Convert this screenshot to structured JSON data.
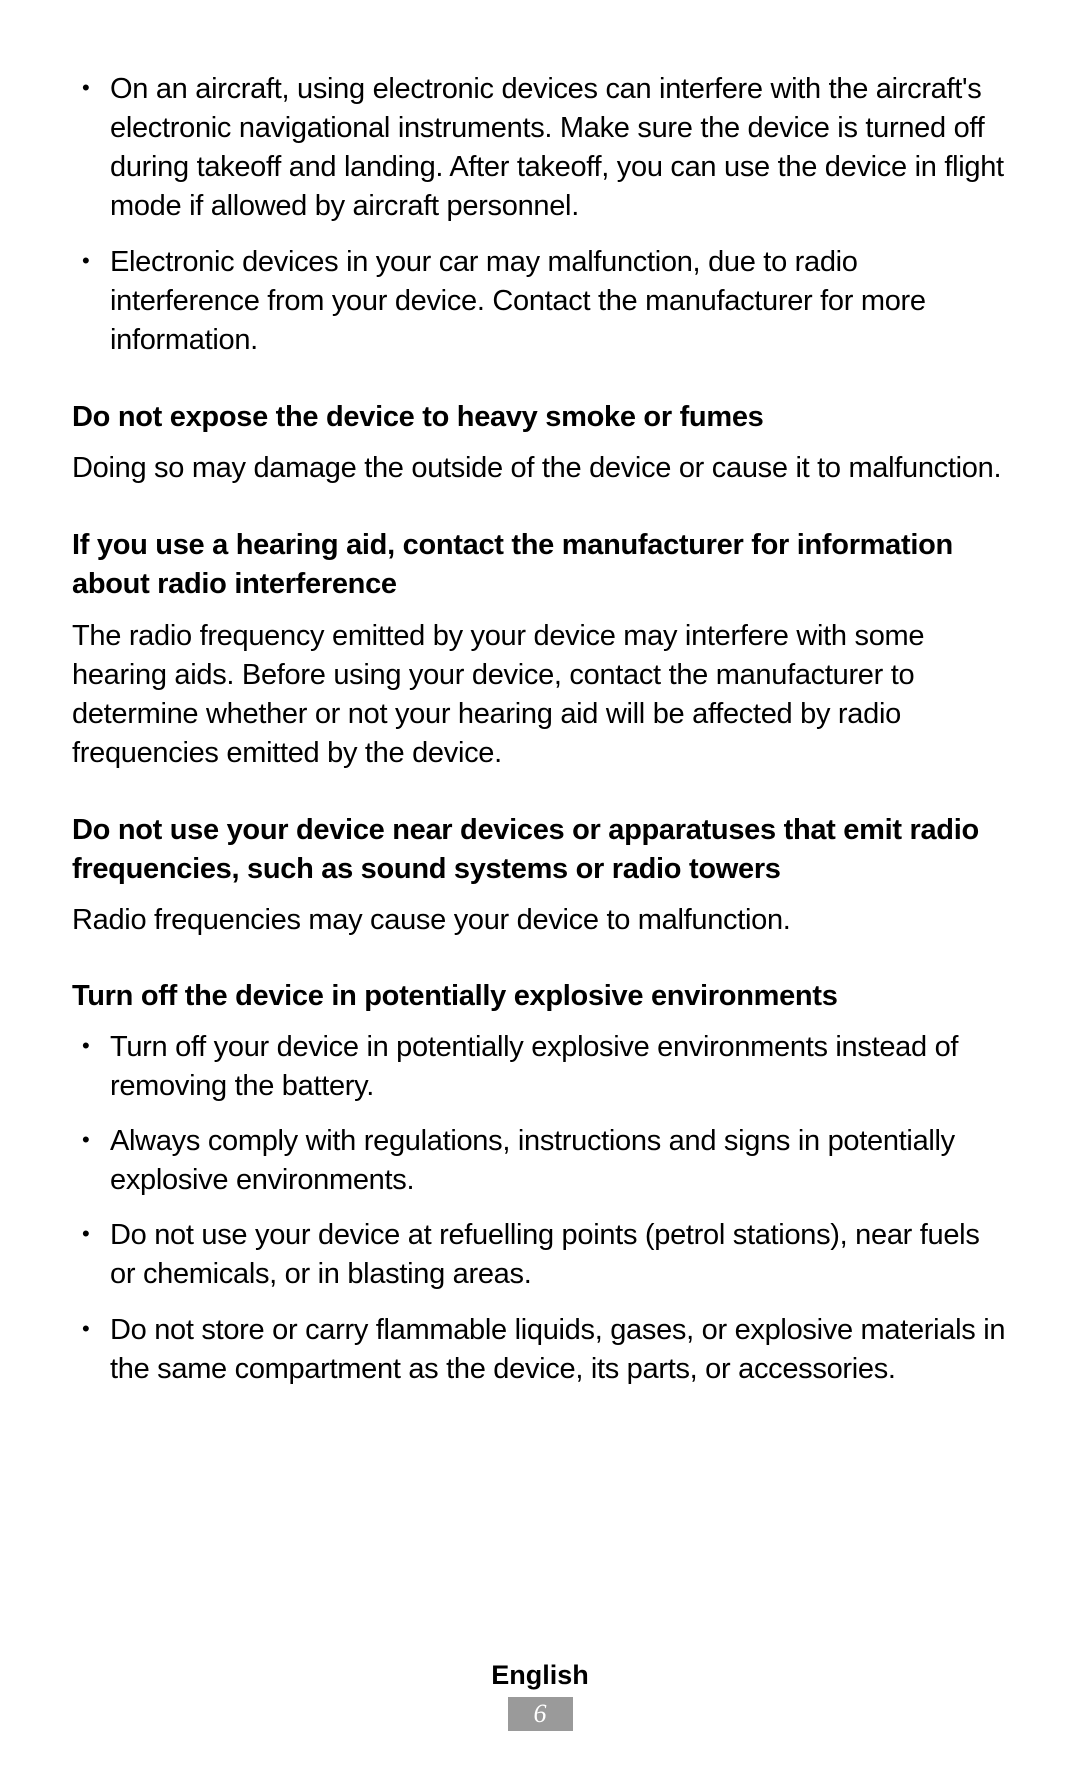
{
  "page": {
    "background_color": "#ffffff",
    "text_color": "#000000",
    "font_size_body": 29,
    "font_size_footer": 27,
    "footer_bg": "#9a9a9a",
    "footer_fg": "#ffffff"
  },
  "top_list": [
    "On an aircraft, using electronic devices can interfere with the aircraft's electronic navigational instruments. Make sure the device is turned off during takeoff and landing. After takeoff, you can use the device in flight mode if allowed by aircraft personnel.",
    "Electronic devices in your car may malfunction, due to radio interference from your device. Contact the manufacturer for more information."
  ],
  "sections": [
    {
      "heading": "Do not expose the device to heavy smoke or fumes",
      "body": "Doing so may damage the outside of the device or cause it to malfunction."
    },
    {
      "heading": "If you use a hearing aid, contact the manufacturer for information about radio interference",
      "body": "The radio frequency emitted by your device may interfere with some hearing aids. Before using your device, contact the manufacturer to determine whether or not your hearing aid will be affected by radio frequencies emitted by the device."
    },
    {
      "heading": "Do not use your device near devices or apparatuses that emit radio frequencies, such as sound systems or radio towers",
      "body": "Radio frequencies may cause your device to malfunction."
    }
  ],
  "list_section": {
    "heading": "Turn off the device in potentially explosive environments",
    "items": [
      "Turn off your device in potentially explosive environments instead of removing the battery.",
      "Always comply with regulations, instructions and signs in potentially explosive environments.",
      "Do not use your device at refuelling points (petrol stations), near fuels or chemicals, or in blasting areas.",
      "Do not store or carry flammable liquids, gases, or explosive materials in the same compartment as the device, its parts, or accessories."
    ]
  },
  "footer": {
    "language": "English",
    "page_number": "6"
  }
}
